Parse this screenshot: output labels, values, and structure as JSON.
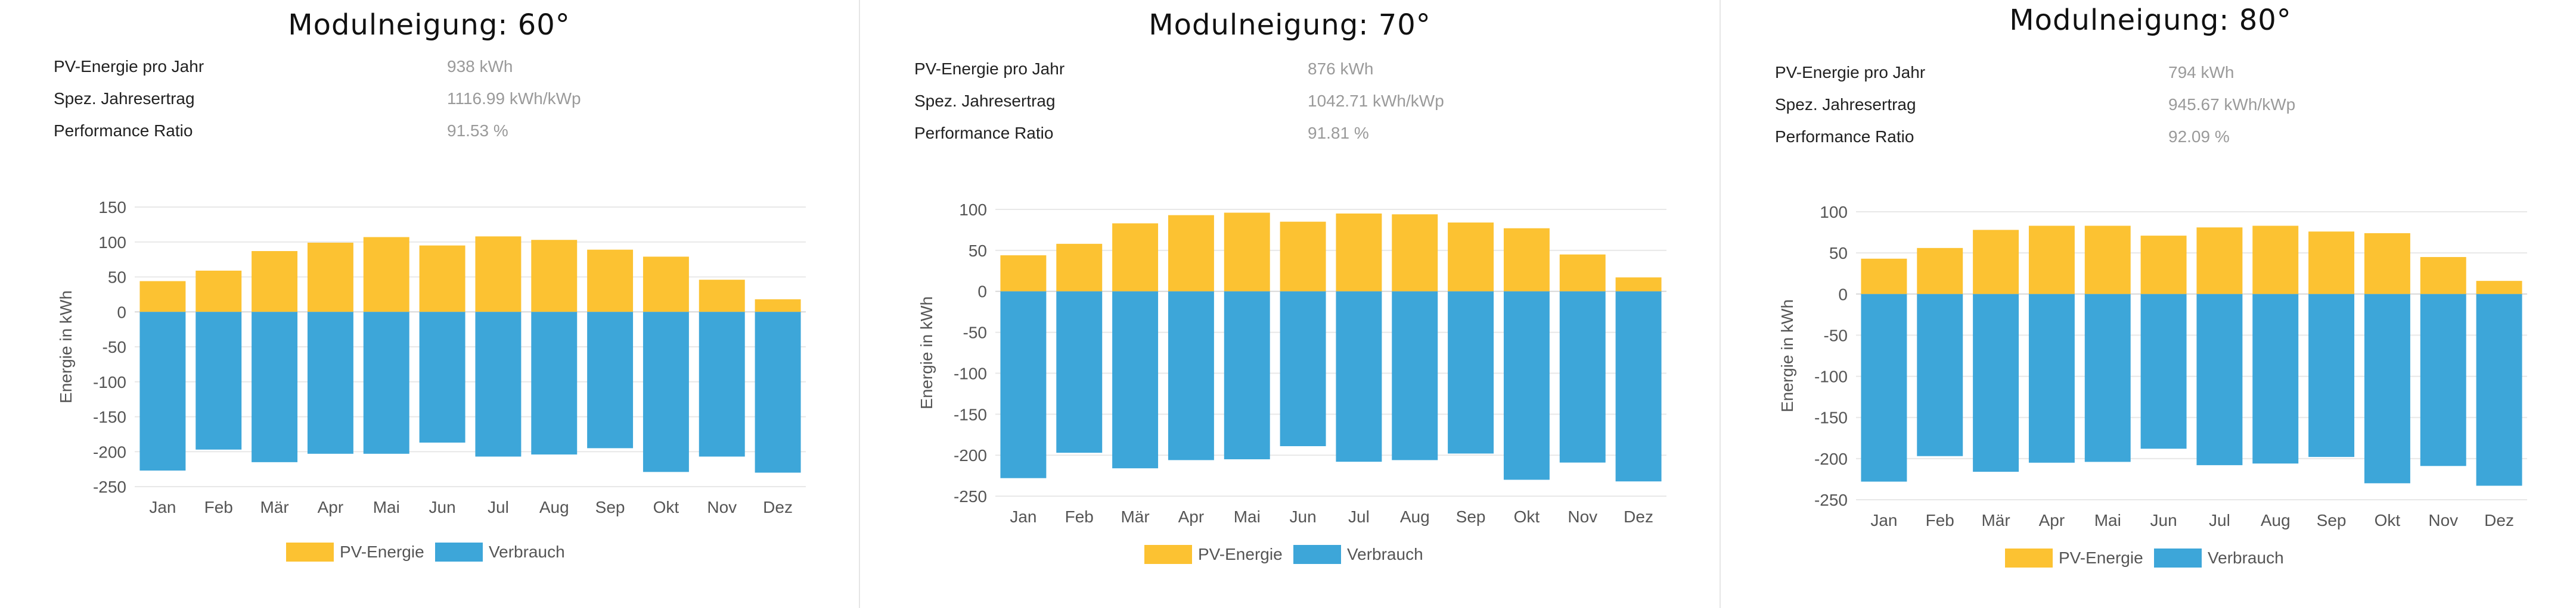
{
  "colors": {
    "pv": "#fcc232",
    "consumption": "#3da6d9",
    "grid": "#e8e8e8",
    "zero_line": "#d8d8d8"
  },
  "panels": [
    {
      "title": "Modulneigung: 60°",
      "stats": [
        {
          "label": "PV-Energie pro Jahr",
          "value": "938 kWh"
        },
        {
          "label": "Spez. Jahresertrag",
          "value": "1116.99 kWh/kWp"
        },
        {
          "label": "Performance Ratio",
          "value": "91.53 %"
        }
      ],
      "legend": [
        "PV-Energie",
        "Verbrauch"
      ]
    },
    {
      "title": "Modulneigung: 70°",
      "stats": [
        {
          "label": "PV-Energie pro Jahr",
          "value": "876 kWh"
        },
        {
          "label": "Spez. Jahresertrag",
          "value": "1042.71 kWh/kWp"
        },
        {
          "label": "Performance Ratio",
          "value": "91.81 %"
        }
      ],
      "legend": [
        "PV-Energie",
        "Verbrauch"
      ]
    },
    {
      "title": "Modulneigung: 80°",
      "stats": [
        {
          "label": "PV-Energie pro Jahr",
          "value": "794 kWh"
        },
        {
          "label": "Spez. Jahresertrag",
          "value": "945.67 kWh/kWp"
        },
        {
          "label": "Performance Ratio",
          "value": "92.09 %"
        }
      ],
      "legend": [
        "PV-Energie",
        "Verbrauch"
      ]
    }
  ],
  "chart_data": [
    {
      "type": "bar",
      "title": "Modulneigung: 60°",
      "categories": [
        "Jan",
        "Feb",
        "Mär",
        "Apr",
        "Mai",
        "Jun",
        "Jul",
        "Aug",
        "Sep",
        "Okt",
        "Nov",
        "Dez"
      ],
      "ylabel": "Energie in kWh",
      "ylim": [
        -250,
        150
      ],
      "yticks": [
        150,
        100,
        50,
        0,
        -50,
        -100,
        -150,
        -200,
        -250
      ],
      "grid": true,
      "legend_position": "bottom",
      "series": [
        {
          "name": "PV-Energie",
          "values": [
            44,
            59,
            87,
            99,
            107,
            95,
            108,
            103,
            89,
            79,
            46,
            18
          ]
        },
        {
          "name": "Verbrauch",
          "values": [
            -227,
            -197,
            -215,
            -203,
            -203,
            -187,
            -207,
            -204,
            -195,
            -229,
            -207,
            -230
          ]
        }
      ]
    },
    {
      "type": "bar",
      "title": "Modulneigung: 70°",
      "categories": [
        "Jan",
        "Feb",
        "Mär",
        "Apr",
        "Mai",
        "Jun",
        "Jul",
        "Aug",
        "Sep",
        "Okt",
        "Nov",
        "Dez"
      ],
      "ylabel": "Energie in kWh",
      "ylim": [
        -250,
        100
      ],
      "yticks": [
        100,
        50,
        0,
        -50,
        -100,
        -150,
        -200,
        -250
      ],
      "grid": true,
      "legend_position": "bottom",
      "series": [
        {
          "name": "PV-Energie",
          "values": [
            44,
            58,
            83,
            93,
            96,
            85,
            95,
            94,
            84,
            77,
            45,
            17
          ]
        },
        {
          "name": "Verbrauch",
          "values": [
            -228,
            -197,
            -216,
            -206,
            -205,
            -189,
            -208,
            -206,
            -198,
            -230,
            -209,
            -232
          ]
        }
      ]
    },
    {
      "type": "bar",
      "title": "Modulneigung: 80°",
      "categories": [
        "Jan",
        "Feb",
        "Mär",
        "Apr",
        "Mai",
        "Jun",
        "Jul",
        "Aug",
        "Sep",
        "Okt",
        "Nov",
        "Dez"
      ],
      "ylabel": "Energie in kWh",
      "ylim": [
        -250,
        100
      ],
      "yticks": [
        100,
        50,
        0,
        -50,
        -100,
        -150,
        -200,
        -250
      ],
      "grid": true,
      "legend_position": "bottom",
      "series": [
        {
          "name": "PV-Energie",
          "values": [
            43,
            56,
            78,
            83,
            83,
            71,
            81,
            83,
            76,
            74,
            45,
            16
          ]
        },
        {
          "name": "Verbrauch",
          "values": [
            -228,
            -197,
            -216,
            -205,
            -204,
            -188,
            -208,
            -206,
            -198,
            -230,
            -209,
            -233
          ]
        }
      ]
    }
  ]
}
